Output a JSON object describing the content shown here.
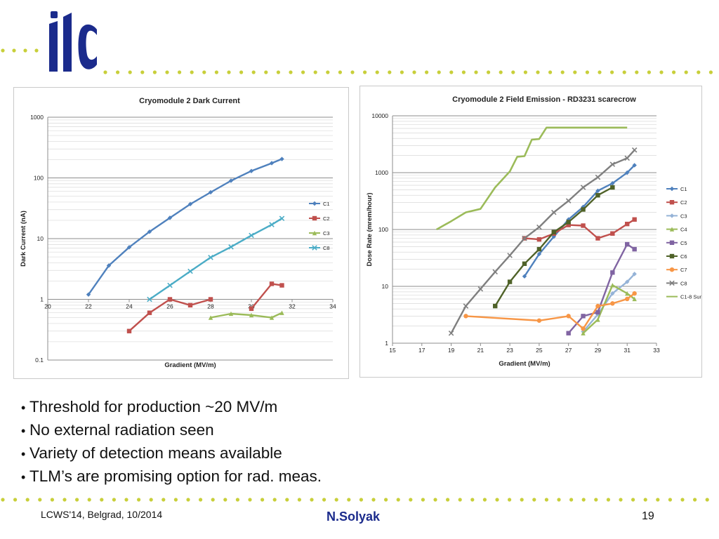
{
  "header": {
    "logo_text": "ilc",
    "logo_color": "#1b2b8c",
    "dot_color": "#c8cf3a"
  },
  "bullets": [
    "Threshold for production ~20 MV/m",
    "No external radiation seen",
    "Variety of detection means available",
    "TLM’s are promising option for rad. meas."
  ],
  "footer": {
    "left": "LCWS'14, Belgrad, 10/2014",
    "center": "N.Solyak",
    "right": "19"
  },
  "chart_data": [
    {
      "type": "line",
      "title": "Cryomodule 2 Dark Current",
      "xlabel": "Gradient (MV/m)",
      "ylabel": "Dark Current (nA)",
      "xlim": [
        20,
        34
      ],
      "ylim": [
        0.1,
        1000
      ],
      "yscale": "log",
      "x_ticks": [
        "20",
        "22",
        "24",
        "26",
        "28",
        "30",
        "32",
        "34"
      ],
      "y_ticks": [
        "0.1",
        "1",
        "10",
        "100",
        "1000"
      ],
      "grid": true,
      "legend_position": "right",
      "series": [
        {
          "name": "C1",
          "color": "#4f81bd",
          "marker": "diamond",
          "x": [
            22,
            23,
            24,
            25,
            26,
            27,
            28,
            29,
            30,
            31,
            31.5
          ],
          "y": [
            1.2,
            3.6,
            7.2,
            13,
            22,
            37,
            58,
            90,
            130,
            175,
            205
          ]
        },
        {
          "name": "C2",
          "color": "#c0504d",
          "marker": "square",
          "x": [
            24,
            25,
            26,
            27,
            28
          ],
          "y": [
            0.3,
            0.6,
            1.0,
            0.8,
            1.0
          ],
          "x2": [
            30,
            31,
            31.5
          ],
          "y2": [
            0.7,
            1.8,
            1.7
          ]
        },
        {
          "name": "C3",
          "color": "#9bbb59",
          "marker": "triangle",
          "x": [
            28,
            29,
            30,
            31,
            31.5
          ],
          "y": [
            0.5,
            0.58,
            0.55,
            0.5,
            0.6
          ]
        },
        {
          "name": "C8",
          "color": "#4bacc6",
          "marker": "x",
          "x": [
            25,
            26,
            27,
            28,
            29,
            30,
            31,
            31.5
          ],
          "y": [
            1.0,
            1.7,
            2.9,
            4.9,
            7.3,
            11.3,
            17,
            21.5
          ]
        }
      ]
    },
    {
      "type": "line",
      "title": "Cryomodule 2 Field Emission - RD3231 scarecrow",
      "xlabel": "Gradient (MV/m)",
      "ylabel": "Dose Rate (mrem/hour)",
      "xlim": [
        15,
        33
      ],
      "ylim": [
        1,
        10000
      ],
      "yscale": "log",
      "x_ticks": [
        "15",
        "17",
        "19",
        "21",
        "23",
        "25",
        "27",
        "29",
        "31",
        "33"
      ],
      "y_ticks": [
        "1",
        "10",
        "100",
        "1000",
        "10000"
      ],
      "grid": true,
      "legend_position": "right",
      "series": [
        {
          "name": "C1",
          "color": "#4f81bd",
          "marker": "diamond",
          "x": [
            24,
            25,
            26,
            27,
            28,
            29,
            30,
            31,
            31.5
          ],
          "y": [
            15,
            37,
            75,
            150,
            250,
            480,
            650,
            1000,
            1350
          ]
        },
        {
          "name": "C2",
          "color": "#c0504d",
          "marker": "square",
          "x": [
            24,
            25,
            26,
            27,
            28,
            29,
            30,
            31,
            31.5
          ],
          "y": [
            70,
            67,
            85,
            120,
            117,
            70,
            85,
            125,
            150
          ]
        },
        {
          "name": "C3",
          "color": "#95b3d7",
          "marker": "diamond",
          "x": [
            28,
            29,
            30,
            31,
            31.5
          ],
          "y": [
            1.6,
            3.2,
            7.5,
            12,
            16.5
          ]
        },
        {
          "name": "C4",
          "color": "#9bbb59",
          "marker": "triangle",
          "x": [
            28,
            29,
            30,
            31,
            31.5
          ],
          "y": [
            1.5,
            2.6,
            10.5,
            7.5,
            6.0
          ]
        },
        {
          "name": "C5",
          "color": "#8064a2",
          "marker": "square",
          "x": [
            27,
            28,
            29,
            30,
            31,
            31.5
          ],
          "y": [
            1.5,
            3.0,
            3.5,
            17.5,
            55,
            45
          ]
        },
        {
          "name": "C6",
          "color": "#4f6228",
          "marker": "square",
          "x": [
            22,
            23,
            24,
            25,
            26,
            27,
            28,
            29,
            30
          ],
          "y": [
            4.5,
            12,
            25,
            45,
            90,
            135,
            225,
            400,
            550
          ]
        },
        {
          "name": "C7",
          "color": "#f79646",
          "marker": "circle",
          "x": [
            20,
            25,
            27,
            28,
            29,
            30,
            31,
            31.5
          ],
          "y": [
            3.0,
            2.5,
            3.0,
            1.8,
            4.5,
            5.0,
            6.0,
            7.5
          ]
        },
        {
          "name": "C8",
          "color": "#7f7f7f",
          "marker": "x",
          "x": [
            19,
            20,
            21,
            22,
            23,
            24,
            25,
            26,
            27,
            28,
            29,
            30,
            31,
            31.5
          ],
          "y": [
            1.5,
            4.5,
            9,
            18,
            35,
            70,
            110,
            200,
            320,
            550,
            830,
            1400,
            1800,
            2500
          ]
        },
        {
          "name": "C1-8 Sum",
          "color": "#9bbb59",
          "marker": "none",
          "x": [
            18,
            19,
            20,
            21,
            22,
            23,
            23.5,
            24,
            24.5,
            25,
            25.5,
            26,
            27,
            28,
            29,
            30,
            31
          ],
          "y": [
            100,
            140,
            200,
            230,
            550,
            1050,
            1900,
            1950,
            3800,
            3900,
            6200,
            6200,
            6200,
            6200,
            6200,
            6200,
            6200
          ]
        }
      ]
    }
  ]
}
